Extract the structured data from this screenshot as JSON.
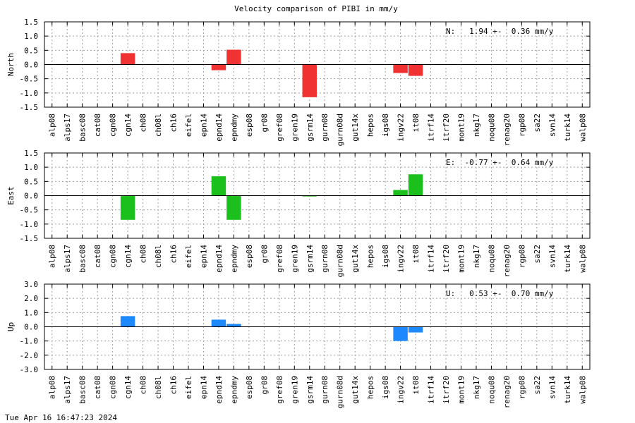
{
  "title": "Velocity comparison of PIBI in mm/y",
  "timestamp": "Tue Apr 16 16:47:23 2024",
  "chart_data": [
    {
      "type": "bar",
      "ylabel": "North",
      "ylim": [
        -1.5,
        1.5
      ],
      "yticks": [
        "1.5",
        "1.0",
        "0.5",
        "0.0",
        "-0.5",
        "-1.0",
        "-1.5"
      ],
      "grid": true,
      "color": "#f03232",
      "annotation": "N:   1.94 +-  0.36 mm/y",
      "categories": [
        "alp08",
        "alps17",
        "basc08",
        "cat08",
        "cgn08",
        "cgn14",
        "ch08",
        "ch08l",
        "ch16",
        "eifel",
        "epn14",
        "epnd14",
        "epndmy",
        "esp08",
        "gr08",
        "gref08",
        "gren19",
        "gsrm14",
        "gurn08",
        "gurn08d",
        "gut14x",
        "hepos",
        "igs08",
        "ingv22",
        "it08",
        "itrf14",
        "itrf20",
        "mont19",
        "nkg17",
        "noqu08",
        "renag20",
        "rgp08",
        "sa22",
        "svn14",
        "turk14",
        "walp08"
      ],
      "values": [
        0,
        0,
        0,
        0,
        0,
        0.4,
        0,
        0,
        0,
        0,
        0,
        -0.2,
        0.52,
        0,
        0,
        0,
        0,
        -1.15,
        0,
        0,
        0,
        0,
        0,
        -0.3,
        -0.4,
        0,
        0,
        0,
        0,
        0,
        0,
        0,
        0,
        0,
        0,
        0
      ]
    },
    {
      "type": "bar",
      "ylabel": "East",
      "ylim": [
        -1.5,
        1.5
      ],
      "yticks": [
        "1.5",
        "1.0",
        "0.5",
        "0.0",
        "-0.5",
        "-1.0",
        "-1.5"
      ],
      "grid": true,
      "color": "#1cc01c",
      "annotation": "E:  -0.77 +-  0.64 mm/y",
      "categories": [
        "alp08",
        "alps17",
        "basc08",
        "cat08",
        "cgn08",
        "cgn14",
        "ch08",
        "ch08l",
        "ch16",
        "eifel",
        "epn14",
        "epnd14",
        "epndmy",
        "esp08",
        "gr08",
        "gref08",
        "gren19",
        "gsrm14",
        "gurn08",
        "gurn08d",
        "gut14x",
        "hepos",
        "igs08",
        "ingv22",
        "it08",
        "itrf14",
        "itrf20",
        "mont19",
        "nkg17",
        "noqu08",
        "renag20",
        "rgp08",
        "sa22",
        "svn14",
        "turk14",
        "walp08"
      ],
      "values": [
        0,
        0,
        0,
        0,
        0,
        -0.85,
        0,
        0,
        0,
        0,
        0,
        0.68,
        -0.85,
        0,
        0,
        0,
        0,
        -0.03,
        0,
        0,
        0,
        0,
        0,
        0.2,
        0.75,
        0,
        0,
        0,
        0,
        0,
        0,
        0,
        0,
        0,
        0,
        0
      ]
    },
    {
      "type": "bar",
      "ylabel": "Up",
      "ylim": [
        -3.0,
        3.0
      ],
      "yticks": [
        "3.0",
        "2.0",
        "1.0",
        "0.0",
        "-1.0",
        "-2.0",
        "-3.0"
      ],
      "grid": true,
      "color": "#1e88ff",
      "annotation": "U:   0.53 +-  0.70 mm/y",
      "categories": [
        "alp08",
        "alps17",
        "basc08",
        "cat08",
        "cgn08",
        "cgn14",
        "ch08",
        "ch08l",
        "ch16",
        "eifel",
        "epn14",
        "epnd14",
        "epndmy",
        "esp08",
        "gr08",
        "gref08",
        "gren19",
        "gsrm14",
        "gurn08",
        "gurn08d",
        "gut14x",
        "hepos",
        "igs08",
        "ingv22",
        "it08",
        "itrf14",
        "itrf20",
        "mont19",
        "nkg17",
        "noqu08",
        "renag20",
        "rgp08",
        "sa22",
        "svn14",
        "turk14",
        "walp08"
      ],
      "values": [
        0,
        0,
        0,
        0,
        0,
        0.75,
        0,
        0,
        0,
        0,
        0,
        0.5,
        0.2,
        0,
        0,
        0,
        0,
        0,
        0,
        0,
        0,
        0,
        0,
        -1.0,
        -0.4,
        0,
        0,
        0,
        0,
        0,
        0,
        0,
        0,
        0,
        0,
        0
      ]
    }
  ]
}
